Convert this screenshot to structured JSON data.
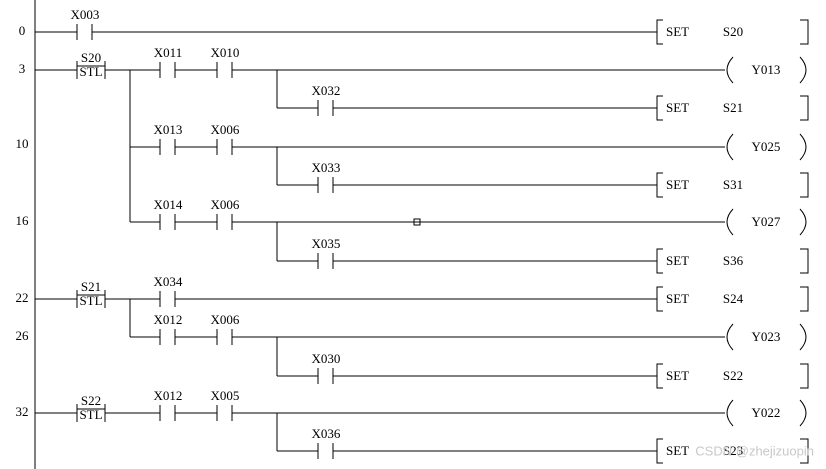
{
  "step_numbers": [
    "0",
    "3",
    "10",
    "16",
    "22",
    "26",
    "32"
  ],
  "rows": [
    {
      "contacts": [
        "X003"
      ],
      "output": {
        "instruction": "SET",
        "operand": "S20"
      }
    },
    {
      "stl": {
        "instruction": "STL",
        "operand": "S20"
      },
      "contacts": [
        "X011",
        "X010"
      ],
      "output": {
        "operand": "Y013"
      }
    },
    {
      "contacts": [
        "X032"
      ],
      "output": {
        "instruction": "SET",
        "operand": "S21"
      }
    },
    {
      "contacts": [
        "X013",
        "X006"
      ],
      "output": {
        "operand": "Y025"
      }
    },
    {
      "contacts": [
        "X033"
      ],
      "output": {
        "instruction": "SET",
        "operand": "S31"
      }
    },
    {
      "contacts": [
        "X014",
        "X006"
      ],
      "output": {
        "operand": "Y027"
      }
    },
    {
      "contacts": [
        "X035"
      ],
      "output": {
        "instruction": "SET",
        "operand": "S36"
      }
    },
    {
      "stl": {
        "instruction": "STL",
        "operand": "S21"
      },
      "contacts": [
        "X034"
      ],
      "output": {
        "instruction": "SET",
        "operand": "S24"
      }
    },
    {
      "contacts": [
        "X012",
        "X006"
      ],
      "output": {
        "operand": "Y023"
      }
    },
    {
      "contacts": [
        "X030"
      ],
      "output": {
        "instruction": "SET",
        "operand": "S22"
      }
    },
    {
      "stl": {
        "instruction": "STL",
        "operand": "S22"
      },
      "contacts": [
        "X012",
        "X005"
      ],
      "output": {
        "operand": "Y022"
      }
    },
    {
      "contacts": [
        "X036"
      ],
      "output": {
        "instruction": "SET",
        "operand": "S23"
      }
    }
  ],
  "watermark": "CSDN @zhejizuopin"
}
